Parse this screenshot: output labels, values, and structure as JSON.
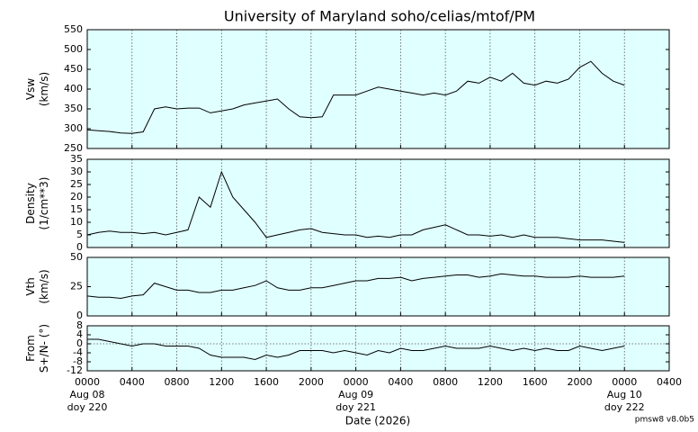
{
  "title": "University of Maryland  soho/celias/mtof/PM",
  "footer": "pmsw8 v8.0b5",
  "x_axis": {
    "label": "Date (2026)",
    "xlim": [
      0,
      52
    ],
    "xticks": [
      {
        "value": 0,
        "label": "0000"
      },
      {
        "value": 4,
        "label": "0400"
      },
      {
        "value": 8,
        "label": "0800"
      },
      {
        "value": 12,
        "label": "1200"
      },
      {
        "value": 16,
        "label": "1600"
      },
      {
        "value": 20,
        "label": "2000"
      },
      {
        "value": 24,
        "label": "0000"
      },
      {
        "value": 28,
        "label": "0400"
      },
      {
        "value": 32,
        "label": "0800"
      },
      {
        "value": 36,
        "label": "1200"
      },
      {
        "value": 40,
        "label": "1600"
      },
      {
        "value": 44,
        "label": "2000"
      },
      {
        "value": 48,
        "label": "0000"
      },
      {
        "value": 52,
        "label": "0400"
      }
    ],
    "date_labels": [
      {
        "value": 0,
        "date": "Aug 08",
        "doy": "doy 220"
      },
      {
        "value": 24,
        "date": "Aug 09",
        "doy": "doy 221"
      },
      {
        "value": 48,
        "date": "Aug 10",
        "doy": "doy 222"
      }
    ]
  },
  "background": "#e0ffff",
  "chart_data": [
    {
      "type": "line",
      "y_label": [
        "Vsw",
        "(km/s)"
      ],
      "ylim": [
        250,
        550
      ],
      "yticks": [
        250,
        300,
        350,
        400,
        450,
        500,
        550
      ],
      "x": [
        0,
        1,
        2,
        3,
        4,
        5,
        6,
        7,
        8,
        9,
        10,
        11,
        12,
        13,
        14,
        15,
        16,
        17,
        18,
        19,
        20,
        21,
        22,
        23,
        24,
        25,
        26,
        27,
        28,
        29,
        30,
        31,
        32,
        33,
        34,
        35,
        36,
        37,
        38,
        39,
        40,
        41,
        42,
        43,
        44,
        45,
        46,
        47,
        48
      ],
      "series": [
        {
          "color": "#000000",
          "values": [
            297,
            295,
            293,
            289,
            288,
            292,
            350,
            355,
            350,
            352,
            352,
            340,
            345,
            350,
            360,
            365,
            370,
            375,
            350,
            330,
            328,
            330,
            385,
            385,
            385,
            395,
            405,
            400,
            395,
            390,
            385,
            390,
            385,
            395,
            420,
            415,
            430,
            420,
            440,
            415,
            410,
            420,
            415,
            425,
            455,
            470,
            440,
            420,
            410
          ]
        }
      ]
    },
    {
      "type": "line",
      "y_label": [
        "Density",
        "(1/cm**3)"
      ],
      "ylim": [
        0,
        35
      ],
      "yticks": [
        0,
        5,
        10,
        15,
        20,
        25,
        30,
        35
      ],
      "x": [
        0,
        1,
        2,
        3,
        4,
        5,
        6,
        7,
        8,
        9,
        10,
        11,
        12,
        13,
        14,
        15,
        16,
        17,
        18,
        19,
        20,
        21,
        22,
        23,
        24,
        25,
        26,
        27,
        28,
        29,
        30,
        31,
        32,
        33,
        34,
        35,
        36,
        37,
        38,
        39,
        40,
        41,
        42,
        43,
        44,
        45,
        46,
        47,
        48
      ],
      "series": [
        {
          "color": "#000000",
          "values": [
            5,
            6,
            6.5,
            6,
            6,
            5.5,
            6,
            5,
            6,
            7,
            20,
            16,
            30,
            20,
            15,
            10,
            4,
            5,
            6,
            7,
            7.5,
            6,
            5.5,
            5,
            5,
            4,
            4.5,
            4,
            5,
            5,
            7,
            8,
            9,
            7,
            5,
            5,
            4.5,
            5,
            4,
            5,
            4,
            4,
            4,
            3.5,
            3,
            3,
            3,
            2.5,
            2
          ]
        }
      ]
    },
    {
      "type": "line",
      "y_label": [
        "Vth",
        "(km/s)"
      ],
      "ylim": [
        0,
        50
      ],
      "yticks": [
        0,
        25,
        50
      ],
      "x": [
        0,
        1,
        2,
        3,
        4,
        5,
        6,
        7,
        8,
        9,
        10,
        11,
        12,
        13,
        14,
        15,
        16,
        17,
        18,
        19,
        20,
        21,
        22,
        23,
        24,
        25,
        26,
        27,
        28,
        29,
        30,
        31,
        32,
        33,
        34,
        35,
        36,
        37,
        38,
        39,
        40,
        41,
        42,
        43,
        44,
        45,
        46,
        47,
        48
      ],
      "series": [
        {
          "color": "#000000",
          "values": [
            17,
            16,
            16,
            15,
            17,
            18,
            28,
            25,
            22,
            22,
            20,
            20,
            22,
            22,
            24,
            26,
            30,
            24,
            22,
            22,
            24,
            24,
            26,
            28,
            30,
            30,
            32,
            32,
            33,
            30,
            32,
            33,
            34,
            35,
            35,
            33,
            34,
            36,
            35,
            34,
            34,
            33,
            33,
            33,
            34,
            33,
            33,
            33,
            34
          ]
        }
      ]
    },
    {
      "type": "line",
      "y_label": [
        "From",
        "S+/N- (°)"
      ],
      "ylim": [
        -12,
        8
      ],
      "yticks": [
        -12,
        -8,
        -4,
        0,
        4,
        8
      ],
      "zero_line": 0,
      "x": [
        0,
        1,
        2,
        3,
        4,
        5,
        6,
        7,
        8,
        9,
        10,
        11,
        12,
        13,
        14,
        15,
        16,
        17,
        18,
        19,
        20,
        21,
        22,
        23,
        24,
        25,
        26,
        27,
        28,
        29,
        30,
        31,
        32,
        33,
        34,
        35,
        36,
        37,
        38,
        39,
        40,
        41,
        42,
        43,
        44,
        45,
        46,
        47,
        48
      ],
      "series": [
        {
          "color": "#000000",
          "values": [
            2,
            2,
            1,
            0,
            -1,
            0,
            0,
            -1,
            -1,
            -1,
            -2,
            -5,
            -6,
            -6,
            -6,
            -7,
            -5,
            -6,
            -5,
            -3,
            -3,
            -3,
            -4,
            -3,
            -4,
            -5,
            -3,
            -4,
            -2,
            -3,
            -3,
            -2,
            -1,
            -2,
            -2,
            -2,
            -1,
            -2,
            -3,
            -2,
            -3,
            -2,
            -3,
            -3,
            -1,
            -2,
            -3,
            -2,
            -1
          ]
        }
      ]
    }
  ]
}
